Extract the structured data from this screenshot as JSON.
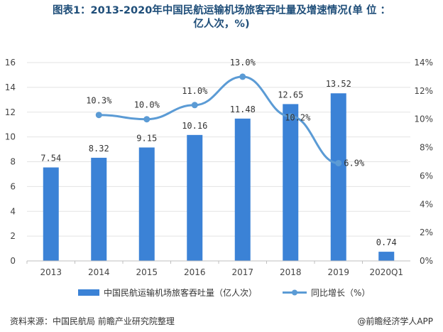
{
  "title": {
    "line1": "图表1：2013-2020年中国民航运输机场旅客吞吐量及增速情况(单 位 ：",
    "line2": "亿人次，%)"
  },
  "chart_data": {
    "type": "bar",
    "categories": [
      "2013",
      "2014",
      "2015",
      "2016",
      "2017",
      "2018",
      "2019",
      "2020Q1"
    ],
    "series": [
      {
        "name": "中国民航运输机场旅客吞吐量（亿人次）",
        "kind": "bar",
        "axis": "left",
        "values": [
          7.54,
          8.32,
          9.15,
          10.16,
          11.48,
          12.65,
          13.52,
          0.74
        ],
        "labels": [
          "7.54",
          "8.32",
          "9.15",
          "10.16",
          "11.48",
          "12.65",
          "13.52",
          "0.74"
        ],
        "color": "#3b82d6"
      },
      {
        "name": "同比增长（%）",
        "kind": "line",
        "axis": "right",
        "values": [
          null,
          10.3,
          10.0,
          11.0,
          13.0,
          10.2,
          6.9,
          null
        ],
        "labels": [
          "",
          "10.3%",
          "10.0%",
          "11.0%",
          "13.0%",
          "10.2%",
          "6.9%",
          ""
        ],
        "color": "#5b9bd5"
      }
    ],
    "y_left": {
      "ticks": [
        "0",
        "2",
        "4",
        "6",
        "8",
        "10",
        "12",
        "14",
        "16"
      ],
      "ylim": [
        0,
        16
      ]
    },
    "y_right": {
      "ticks": [
        "0%",
        "2%",
        "4%",
        "6%",
        "8%",
        "10%",
        "12%",
        "14%"
      ],
      "ylim": [
        0,
        14
      ]
    },
    "legend_position": "bottom"
  },
  "footer": {
    "source": "资料来源：中国民航局 前瞻产业研究院整理",
    "brand": "@前瞻经济学人APP"
  }
}
